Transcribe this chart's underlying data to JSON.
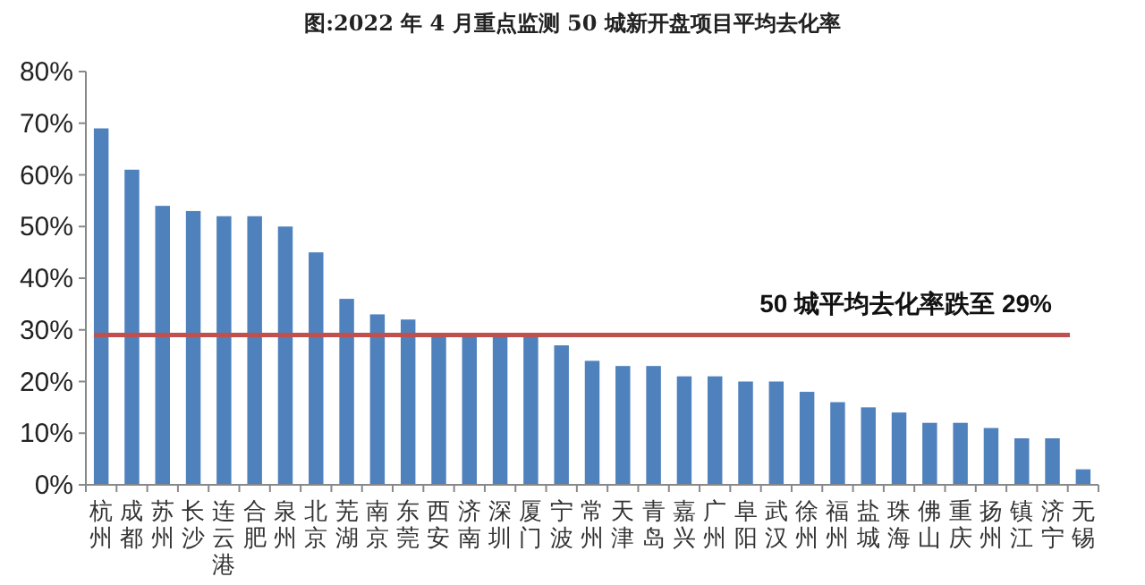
{
  "chart_data": {
    "type": "bar",
    "title": "图:2022 年 4 月重点监测 50 城新开盘项目平均去化率",
    "categories": [
      "杭州",
      "成都",
      "苏州",
      "长沙",
      "连云港",
      "合肥",
      "泉州",
      "北京",
      "芜湖",
      "南京",
      "东莞",
      "西安",
      "济南",
      "深圳",
      "厦门",
      "宁波",
      "常州",
      "天津",
      "青岛",
      "嘉兴",
      "广州",
      "阜阳",
      "武汉",
      "徐州",
      "福州",
      "盐城",
      "珠海",
      "佛山",
      "重庆",
      "扬州",
      "镇江",
      "济宁",
      "无锡"
    ],
    "values": [
      69,
      61,
      54,
      53,
      52,
      52,
      50,
      45,
      36,
      33,
      32,
      29,
      29,
      29,
      29,
      27,
      24,
      23,
      23,
      21,
      21,
      20,
      20,
      18,
      16,
      15,
      14,
      12,
      12,
      11,
      9,
      9,
      3
    ],
    "color": "#4f81bd",
    "ylim": [
      0,
      80
    ],
    "yticks": [
      {
        "value": 0,
        "label": "0%"
      },
      {
        "value": 10,
        "label": "10%"
      },
      {
        "value": 20,
        "label": "20%"
      },
      {
        "value": 30,
        "label": "30%"
      },
      {
        "value": 40,
        "label": "40%"
      },
      {
        "value": 50,
        "label": "50%"
      },
      {
        "value": 60,
        "label": "60%"
      },
      {
        "value": 70,
        "label": "70%"
      },
      {
        "value": 80,
        "label": "80%"
      }
    ],
    "ref_lines": [
      {
        "axis": "y",
        "value": 29,
        "label": "50 城平均去化率跌至 29%",
        "color": "#c0504d"
      }
    ]
  }
}
